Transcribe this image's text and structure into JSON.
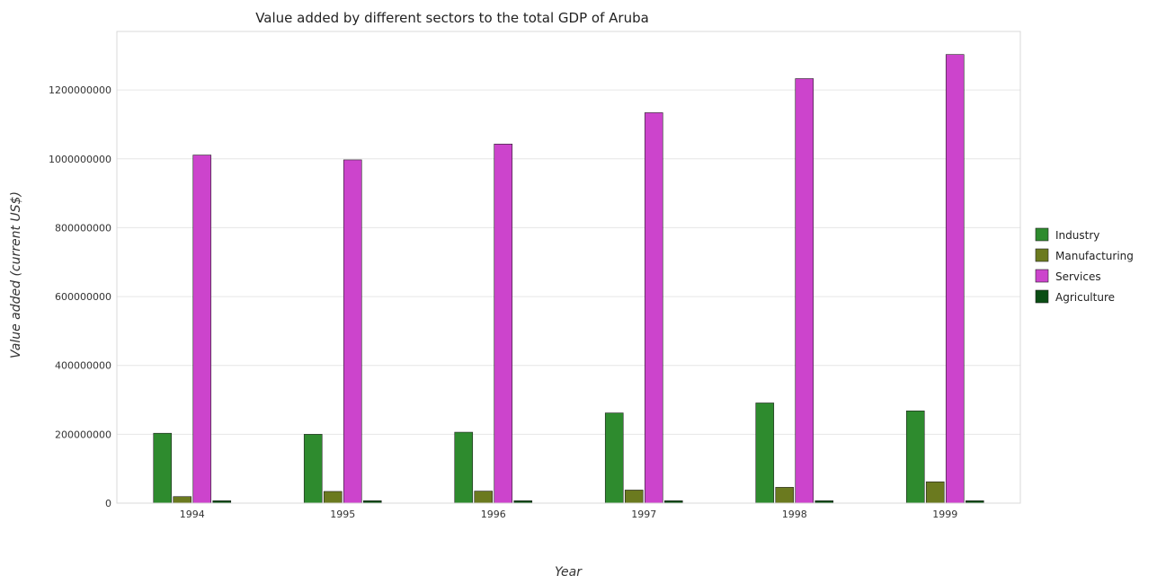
{
  "chart_data": {
    "type": "bar",
    "title": "Value added by different sectors to the total GDP of Aruba",
    "xlabel": "Year",
    "ylabel": "Value added (current US$)",
    "categories": [
      "1994",
      "1995",
      "1996",
      "1997",
      "1998",
      "1999"
    ],
    "series": [
      {
        "name": "Industry",
        "color": "#2e8b2e",
        "values": [
          203000000,
          200000000,
          206000000,
          262000000,
          291000000,
          268000000
        ]
      },
      {
        "name": "Manufacturing",
        "color": "#6b7a1f",
        "values": [
          19000000,
          34000000,
          35000000,
          38000000,
          46000000,
          62000000
        ]
      },
      {
        "name": "Services",
        "color": "#cc44cc",
        "values": [
          1011000000,
          997000000,
          1043000000,
          1134000000,
          1233000000,
          1303000000
        ]
      },
      {
        "name": "Agriculture",
        "color": "#0a4d14",
        "values": [
          7000000,
          7000000,
          7000000,
          7000000,
          7000000,
          7000000
        ]
      }
    ],
    "ylim": [
      0,
      1370000000
    ],
    "yticks": [
      0,
      200000000,
      400000000,
      600000000,
      800000000,
      1000000000,
      1200000000
    ],
    "ytick_labels": [
      "0",
      "200000000",
      "400000000",
      "600000000",
      "800000000",
      "1000000000",
      "1200000000"
    ],
    "grid": true,
    "legend_position": "right"
  }
}
